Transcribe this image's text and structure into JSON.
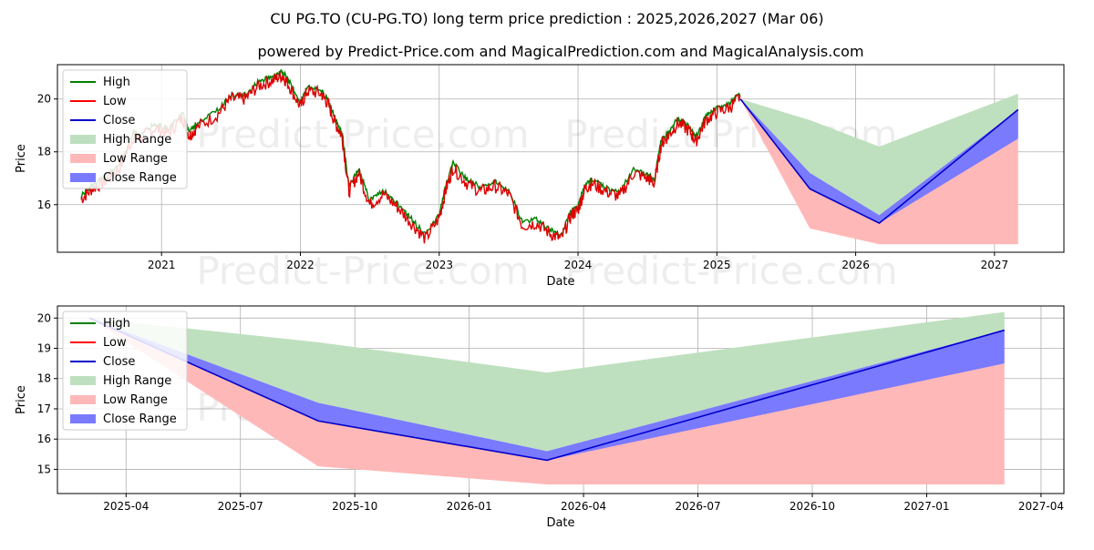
{
  "title": "CU PG.TO (CU-PG.TO) long term price prediction : 2025,2026,2027 (Mar 06)",
  "subtitle": "powered by Predict-Price.com and MagicalPrediction.com and MagicalAnalysis.com",
  "watermark": "Predict-Price.com",
  "colors": {
    "high": "#008000",
    "low": "#ff0000",
    "close": "#0000cc",
    "high_range": "#bfe0bf",
    "low_range": "#ffb8b8",
    "close_range": "#7a7aff",
    "hist_green": "#008000",
    "hist_red": "#dd0000"
  },
  "legend": {
    "high": "High",
    "low": "Low",
    "close": "Close",
    "high_range": "High Range",
    "low_range": "Low Range",
    "close_range": "Close Range"
  },
  "chart_data": [
    {
      "type": "line",
      "xlabel": "Date",
      "ylabel": "Price",
      "xlim": [
        2020.25,
        2027.5
      ],
      "ylim": [
        14.2,
        21.3
      ],
      "x_ticks": [
        2021,
        2022,
        2023,
        2024,
        2025,
        2026,
        2027
      ],
      "x_tick_labels": [
        "2021",
        "2022",
        "2023",
        "2024",
        "2025",
        "2026",
        "2027"
      ],
      "y_ticks": [
        16,
        18,
        20
      ],
      "y_tick_labels": [
        "16",
        "18",
        "20"
      ],
      "grid": true,
      "legend_position": "upper-left",
      "history": {
        "x": [
          2020.42,
          2020.5,
          2020.6,
          2020.7,
          2020.8,
          2020.85,
          2020.95,
          2021.05,
          2021.15,
          2021.2,
          2021.25,
          2021.4,
          2021.5,
          2021.6,
          2021.7,
          2021.8,
          2021.87,
          2021.92,
          2022.0,
          2022.05,
          2022.15,
          2022.2,
          2022.25,
          2022.3,
          2022.35,
          2022.42,
          2022.5,
          2022.6,
          2022.7,
          2022.8,
          2022.9,
          2023.0,
          2023.05,
          2023.1,
          2023.2,
          2023.3,
          2023.4,
          2023.5,
          2023.6,
          2023.7,
          2023.8,
          2023.88,
          2023.95,
          2024.0,
          2024.05,
          2024.1,
          2024.2,
          2024.3,
          2024.4,
          2024.5,
          2024.55,
          2024.6,
          2024.65,
          2024.72,
          2024.8,
          2024.85,
          2024.92,
          2025.0,
          2025.1,
          2025.17
        ],
        "close": [
          16.2,
          16.6,
          16.9,
          17.4,
          18.6,
          18.5,
          18.9,
          18.7,
          19.3,
          18.6,
          18.9,
          19.4,
          20.0,
          20.0,
          20.5,
          20.7,
          20.9,
          20.5,
          19.7,
          20.3,
          20.2,
          19.8,
          19.1,
          18.6,
          16.5,
          17.2,
          16.0,
          16.4,
          15.9,
          15.3,
          14.7,
          15.5,
          16.6,
          17.4,
          16.8,
          16.5,
          16.7,
          16.4,
          15.2,
          15.3,
          14.9,
          14.7,
          15.6,
          15.8,
          16.6,
          16.8,
          16.5,
          16.3,
          17.2,
          17.0,
          16.8,
          18.3,
          18.6,
          19.1,
          18.8,
          18.4,
          19.2,
          19.5,
          19.7,
          20.1
        ]
      },
      "forecast": {
        "x": [
          2025.17,
          2025.67,
          2026.17,
          2027.17
        ],
        "close": [
          20.0,
          16.6,
          15.3,
          19.6
        ],
        "high_range": {
          "upper": [
            20.0,
            19.2,
            18.2,
            20.2
          ],
          "lower": [
            20.0,
            17.0,
            15.5,
            18.5
          ]
        },
        "low_range": {
          "upper": [
            20.0,
            17.0,
            15.5,
            18.5
          ],
          "lower": [
            20.0,
            15.1,
            14.5,
            14.5
          ]
        },
        "close_range": {
          "upper": [
            20.0,
            17.2,
            15.6,
            19.6
          ],
          "lower": [
            20.0,
            16.6,
            15.3,
            18.5
          ]
        }
      }
    },
    {
      "type": "line",
      "xlabel": "Date",
      "ylabel": "Price",
      "xlim": [
        2025.1,
        2027.3
      ],
      "ylim": [
        14.2,
        20.4
      ],
      "x_ticks": [
        2025.25,
        2025.5,
        2025.75,
        2026.0,
        2026.25,
        2026.5,
        2026.75,
        2027.0,
        2027.25
      ],
      "x_tick_labels": [
        "2025-04",
        "2025-07",
        "2025-10",
        "2026-01",
        "2026-04",
        "2026-07",
        "2026-10",
        "2027-01",
        "2027-04"
      ],
      "y_ticks": [
        15,
        16,
        17,
        18,
        19,
        20
      ],
      "y_tick_labels": [
        "15",
        "16",
        "17",
        "18",
        "19",
        "20"
      ],
      "grid": true,
      "legend_position": "upper-left",
      "forecast": {
        "x": [
          2025.17,
          2025.67,
          2026.17,
          2027.17
        ],
        "close": [
          20.0,
          16.6,
          15.3,
          19.6
        ],
        "high_range": {
          "upper": [
            20.0,
            19.2,
            18.2,
            20.2
          ],
          "lower": [
            20.0,
            17.2,
            15.6,
            19.6
          ]
        },
        "low_range": {
          "upper": [
            20.0,
            17.0,
            15.5,
            18.5
          ],
          "lower": [
            20.0,
            15.1,
            14.5,
            14.5
          ]
        },
        "close_range": {
          "upper": [
            20.0,
            17.2,
            15.6,
            19.6
          ],
          "lower": [
            20.0,
            16.6,
            15.3,
            18.5
          ]
        }
      }
    }
  ]
}
